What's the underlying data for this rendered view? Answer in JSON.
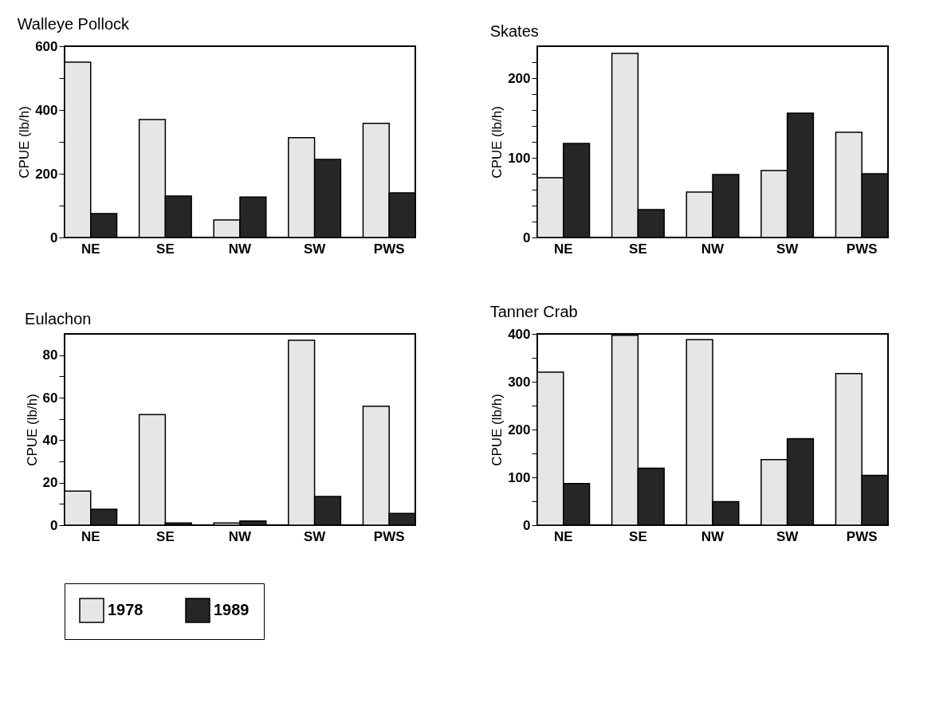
{
  "chart_data": [
    {
      "type": "bar",
      "title": "Walleye Pollock",
      "ylabel": "CPUE (lb/h)",
      "categories": [
        "NE",
        "SE",
        "NW",
        "SW",
        "PWS"
      ],
      "ylim": [
        0,
        600
      ],
      "yticks": [
        0,
        {
          "value": 100,
          "label": null
        },
        200,
        {
          "value": 300,
          "label": null
        },
        400,
        {
          "value": 500,
          "label": null
        },
        600
      ],
      "grid": false,
      "legend": "bottom",
      "series": [
        {
          "name": "1978",
          "color": "#e6e6e6",
          "values": [
            550,
            370,
            55,
            313,
            358
          ]
        },
        {
          "name": "1989",
          "color": "#262626",
          "values": [
            75,
            130,
            127,
            245,
            140
          ]
        }
      ]
    },
    {
      "type": "bar",
      "title": "Skates",
      "ylabel": "CPUE (lb/h)",
      "categories": [
        "NE",
        "SE",
        "NW",
        "SW",
        "PWS"
      ],
      "ylim": [
        0,
        240
      ],
      "yticks": [
        0,
        {
          "value": 20,
          "label": null
        },
        {
          "value": 40,
          "label": null
        },
        {
          "value": 60,
          "label": null
        },
        {
          "value": 80,
          "label": null
        },
        100,
        {
          "value": 120,
          "label": null
        },
        {
          "value": 140,
          "label": null
        },
        {
          "value": 160,
          "label": null
        },
        {
          "value": 180,
          "label": null
        },
        200,
        {
          "value": 220,
          "label": null
        }
      ],
      "grid": false,
      "legend": "bottom",
      "series": [
        {
          "name": "1978",
          "color": "#e6e6e6",
          "values": [
            75,
            231,
            57,
            84,
            132
          ]
        },
        {
          "name": "1989",
          "color": "#262626",
          "values": [
            118,
            35,
            79,
            156,
            80
          ]
        }
      ]
    },
    {
      "type": "bar",
      "title": "Eulachon",
      "ylabel": "CPUE (lb/h)",
      "categories": [
        "NE",
        "SE",
        "NW",
        "SW",
        "PWS"
      ],
      "ylim": [
        0,
        90
      ],
      "yticks": [
        0,
        {
          "value": 10,
          "label": null
        },
        20,
        {
          "value": 30,
          "label": null
        },
        40,
        {
          "value": 50,
          "label": null
        },
        60,
        {
          "value": 70,
          "label": null
        },
        80
      ],
      "grid": false,
      "legend": "bottom",
      "series": [
        {
          "name": "1978",
          "color": "#e6e6e6",
          "values": [
            16,
            52,
            1,
            87,
            56
          ]
        },
        {
          "name": "1989",
          "color": "#262626",
          "values": [
            7.5,
            1,
            2,
            13.5,
            5.5
          ]
        }
      ]
    },
    {
      "type": "bar",
      "title": "Tanner Crab",
      "ylabel": "CPUE (lb/h)",
      "categories": [
        "NE",
        "SE",
        "NW",
        "SW",
        "PWS"
      ],
      "ylim": [
        0,
        400
      ],
      "yticks": [
        0,
        {
          "value": 50,
          "label": null
        },
        100,
        {
          "value": 150,
          "label": null
        },
        200,
        {
          "value": 250,
          "label": null
        },
        300,
        {
          "value": 350,
          "label": null
        },
        400
      ],
      "grid": false,
      "legend": "bottom",
      "series": [
        {
          "name": "1978",
          "color": "#e6e6e6",
          "values": [
            320,
            397,
            388,
            137,
            317
          ]
        },
        {
          "name": "1989",
          "color": "#262626",
          "values": [
            87,
            119,
            49,
            181,
            104
          ]
        }
      ]
    }
  ]
}
